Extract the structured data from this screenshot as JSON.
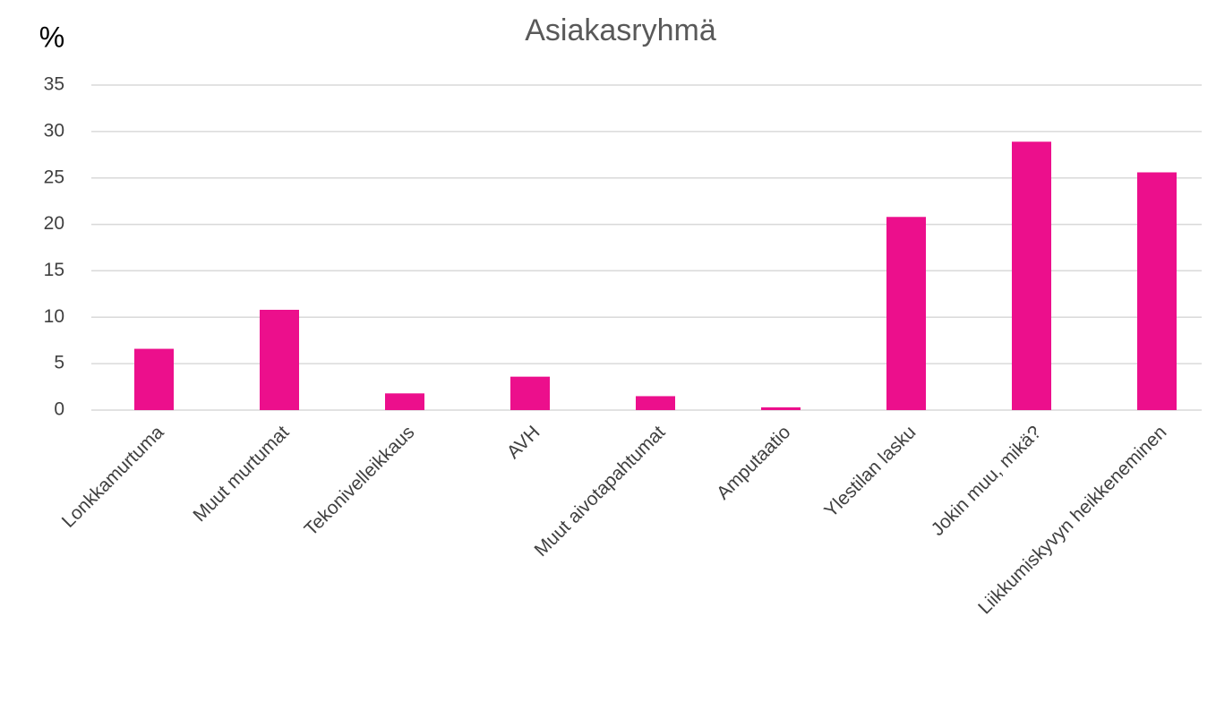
{
  "chart_data": {
    "type": "bar",
    "title": "Asiakasryhmä",
    "y_label": "%",
    "categories": [
      "Lonkkamurtuma",
      "Muut murtumat",
      "Tekonivelleikkaus",
      "AVH",
      "Muut aivotapahtumat",
      "Amputaatio",
      "Ylestilan lasku",
      "Jokin muu, mikä?",
      "Liikkumiskyvyn heikkeneminen"
    ],
    "values": [
      6.6,
      10.8,
      1.8,
      3.6,
      1.5,
      0.3,
      20.8,
      28.9,
      25.6
    ],
    "color": "#ec0f8c",
    "ylim": [
      0,
      35
    ],
    "yticks": [
      0,
      5,
      10,
      15,
      20,
      25,
      30,
      35
    ],
    "grid": true
  }
}
